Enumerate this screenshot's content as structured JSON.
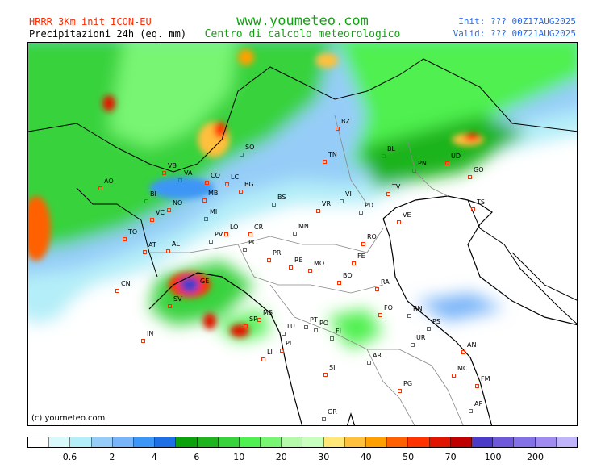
{
  "header": {
    "model_title": "HRRR 3Km init ICON-EU",
    "parameter": "Precipitazioni 24h (eq. mm)",
    "site": "www.youmeteo.com",
    "subtitle": "Centro di calcolo meteorologico",
    "init": "Init: ??? 00Z17AUG2025",
    "valid": "Valid: ??? 00Z21AUG2025"
  },
  "map": {
    "copyright": "(c) youmeteo.com",
    "cities": [
      "AO",
      "VB",
      "VA",
      "CO",
      "LC",
      "SO",
      "BG",
      "BS",
      "BI",
      "NO",
      "MB",
      "MI",
      "VC",
      "TO",
      "AT",
      "AL",
      "PV",
      "LO",
      "CR",
      "PC",
      "CN",
      "GE",
      "SV",
      "IN",
      "MS",
      "SP",
      "LU",
      "PI",
      "LI",
      "PT",
      "PO",
      "FI",
      "PR",
      "RE",
      "MO",
      "BO",
      "FE",
      "RA",
      "FO",
      "RN",
      "PS",
      "UR",
      "AN",
      "MC",
      "FM",
      "AP",
      "AR",
      "PG",
      "SI",
      "GR",
      "BZ",
      "TN",
      "BL",
      "PN",
      "UD",
      "GO",
      "TS",
      "TV",
      "VI",
      "VR",
      "PD",
      "VE",
      "RO",
      "MN"
    ]
  },
  "legend": {
    "colors": [
      "#ffffff",
      "#d9f8fc",
      "#b4eef8",
      "#96cdf8",
      "#78b4f8",
      "#3c96f5",
      "#1e6ee6",
      "#0ca00c",
      "#1eb41e",
      "#37d23c",
      "#50f050",
      "#78f573",
      "#b4faaa",
      "#c8ffbe",
      "#ffe878",
      "#ffc03c",
      "#ffa000",
      "#ff6000",
      "#ff3200",
      "#e11400",
      "#c00000",
      "#4a3cc8",
      "#6e5ad8",
      "#8272e6",
      "#a08cf0",
      "#c0b4fa"
    ],
    "ticks": [
      "0.6",
      "2",
      "4",
      "6",
      "10",
      "20",
      "30",
      "40",
      "50",
      "70",
      "100",
      "200"
    ]
  }
}
